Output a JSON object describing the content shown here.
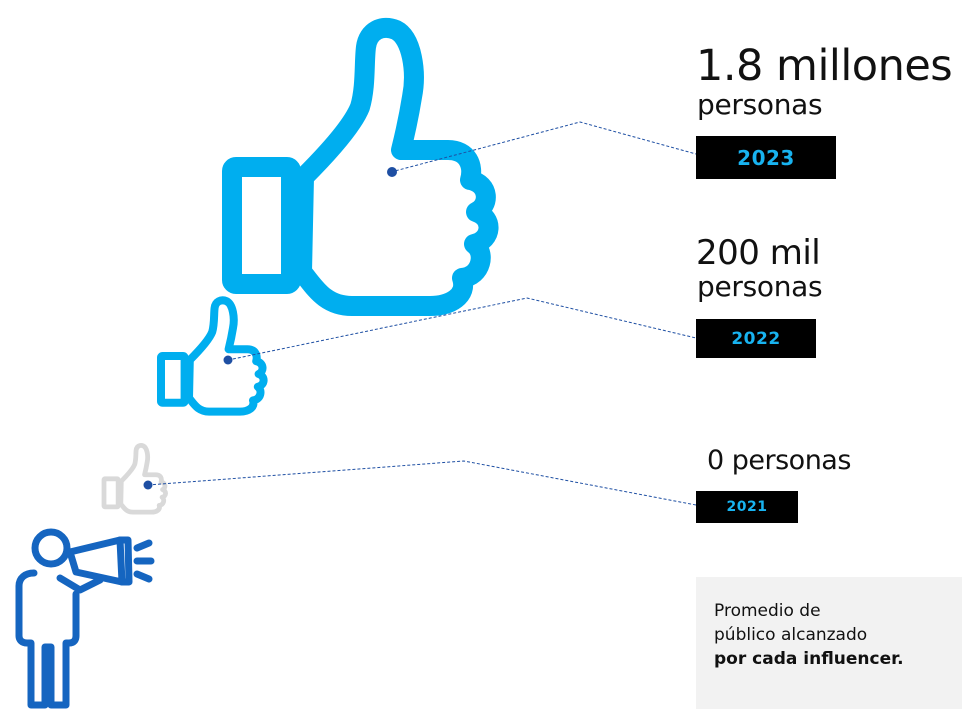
{
  "stats": [
    {
      "figure": "1.8 millones",
      "unit": "personas",
      "year": "2023"
    },
    {
      "figure": "200 mil",
      "unit": "personas",
      "year": "2022"
    },
    {
      "figure": "0 personas",
      "unit": "",
      "year": "2021"
    }
  ],
  "note": {
    "line1": "Promedio de",
    "line2": "público alcanzado",
    "line3": "por cada influencer."
  },
  "colors": {
    "thumb_bright": "#00aeef",
    "thumb_faded": "#d9d9d9",
    "person": "#1565c0",
    "connector": "#1e4fa3",
    "year_bg": "#000000",
    "year_text": "#18b3f0",
    "note_bg": "#f2f2f2"
  },
  "icons": [
    "thumbs-up-icon",
    "person-megaphone-icon"
  ]
}
